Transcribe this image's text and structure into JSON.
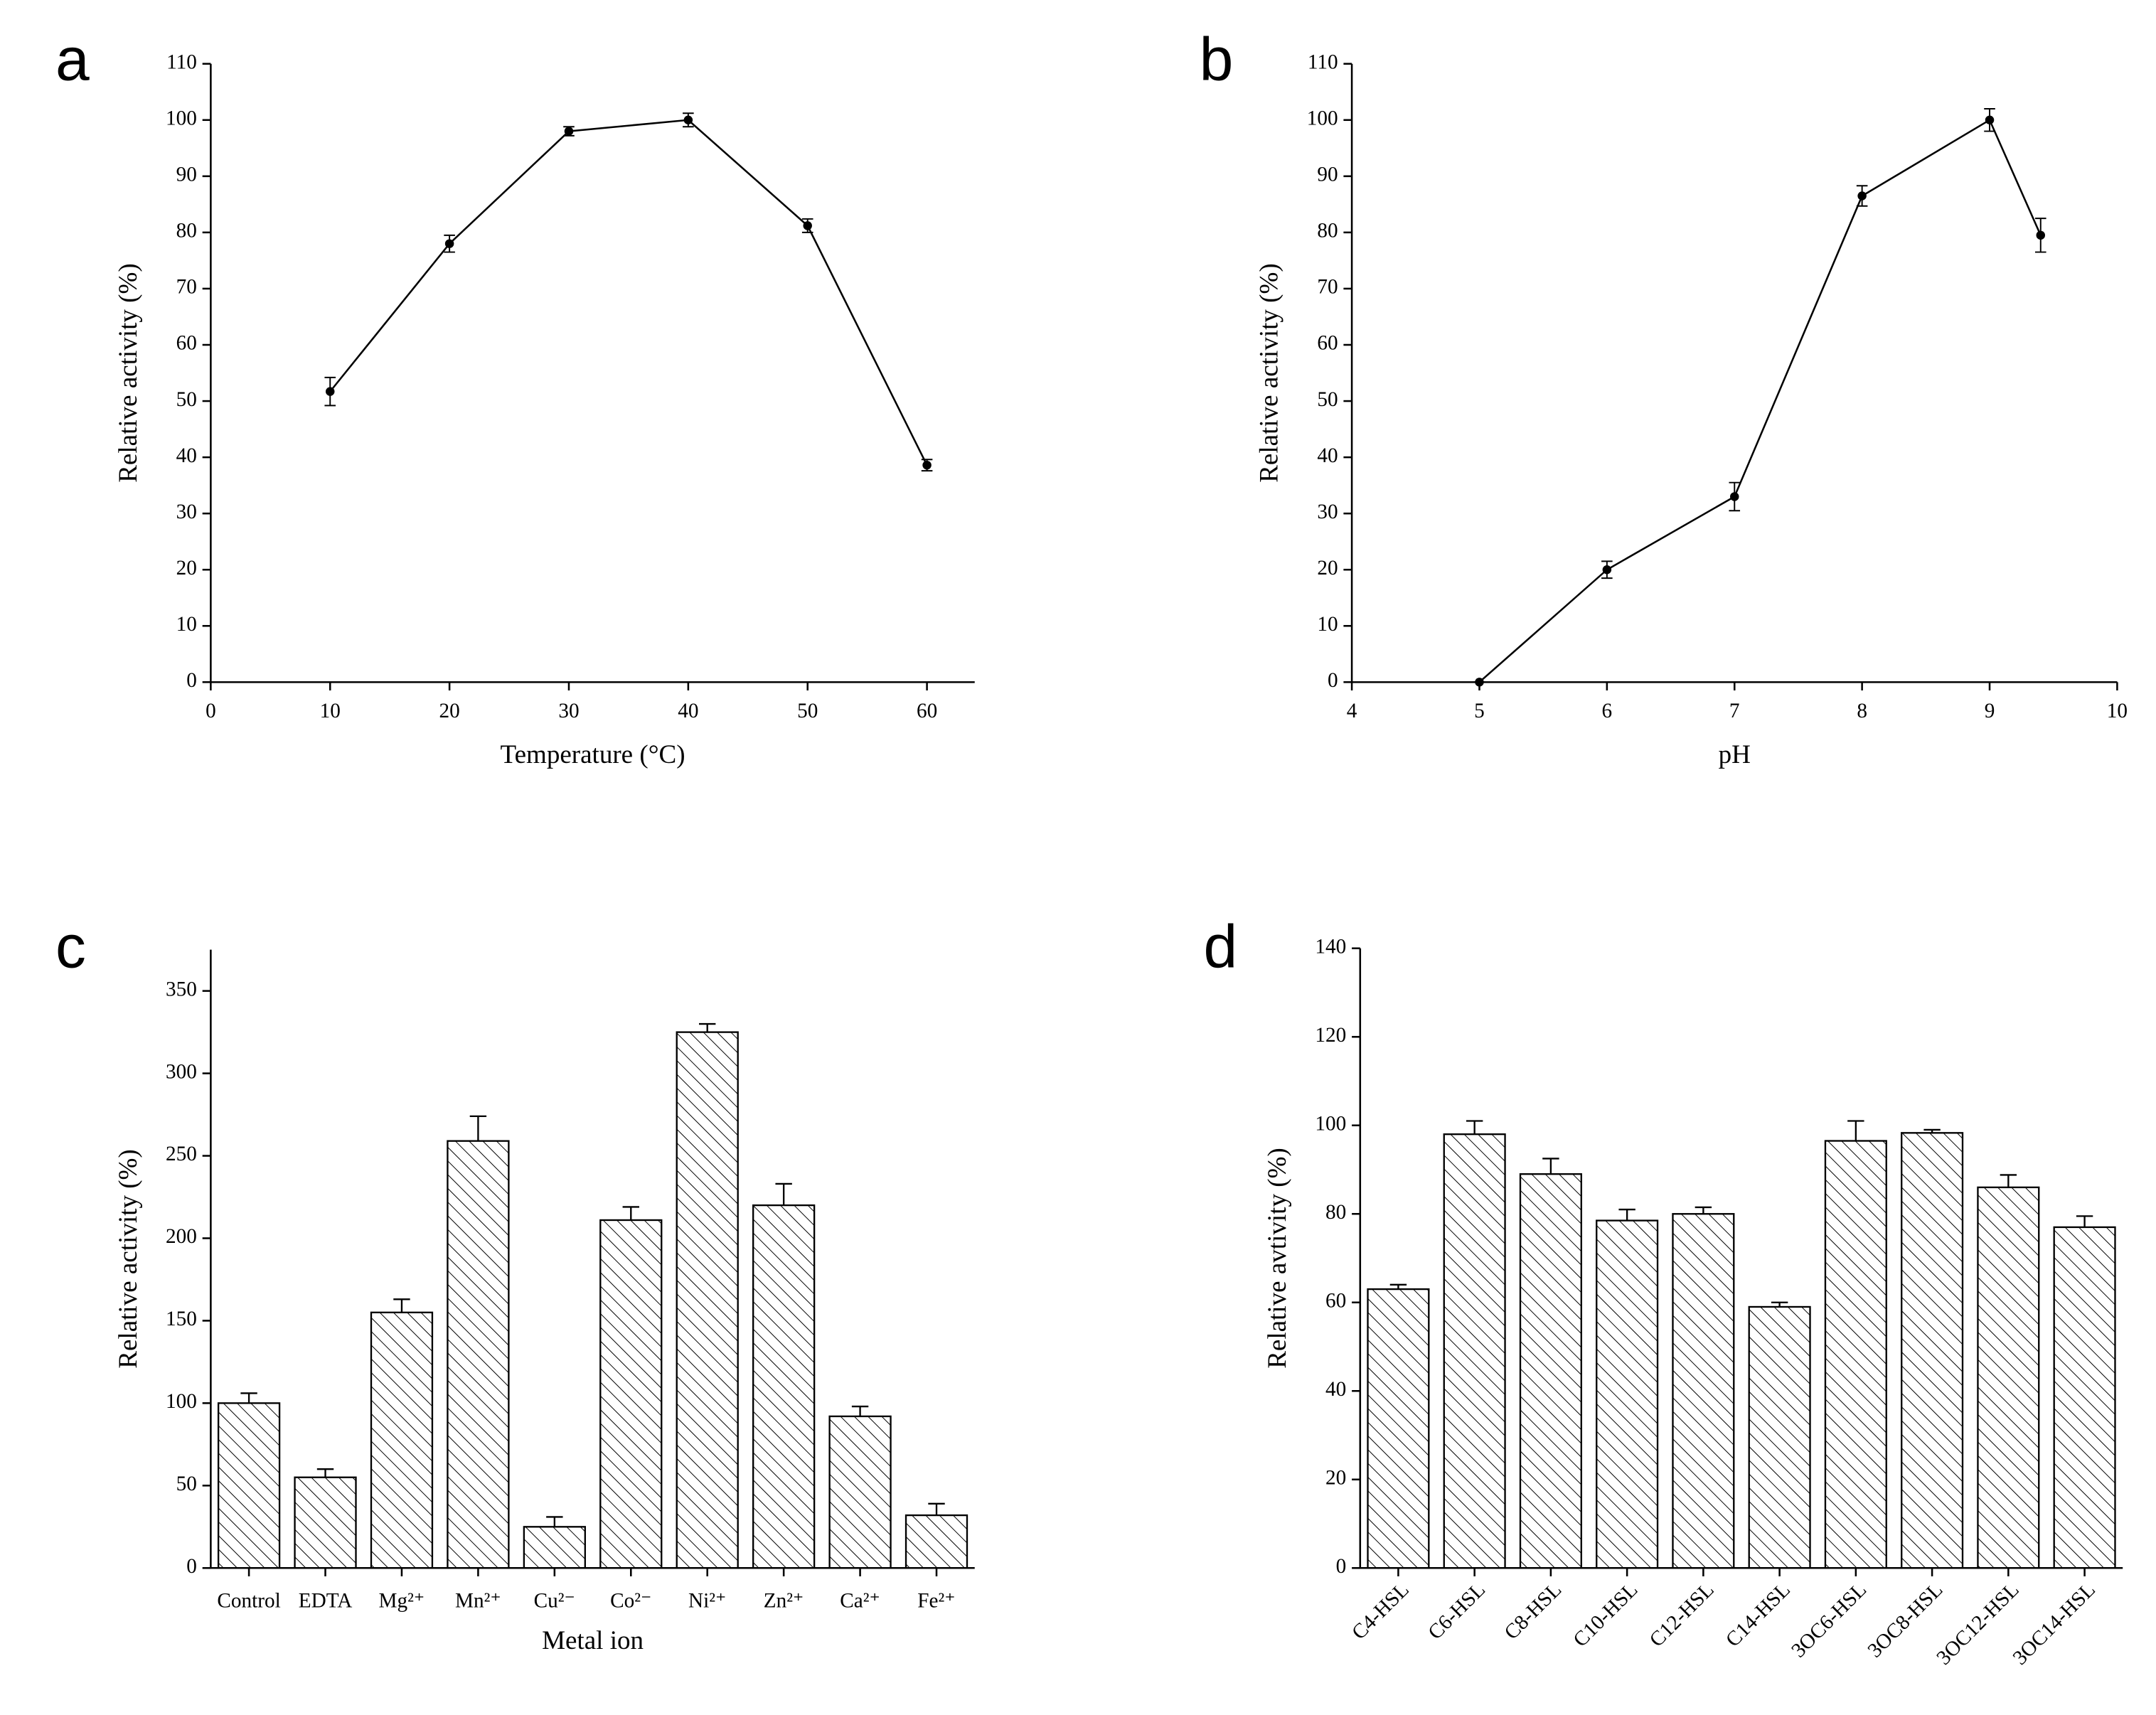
{
  "chart_data": [
    {
      "type": "line",
      "panel": "a",
      "xlabel": "Temperature (°C)",
      "ylabel": "Relative activity (%)",
      "x": [
        10,
        20,
        30,
        40,
        50,
        60
      ],
      "values": [
        51.7,
        78,
        98,
        100,
        81.2,
        38.6
      ],
      "errors": [
        2.5,
        1.5,
        0.8,
        1.2,
        1.2,
        1
      ],
      "color": "#000000",
      "xlim": [
        0,
        64
      ],
      "xticks": [
        0,
        10,
        20,
        30,
        40,
        50,
        60
      ],
      "ylim": [
        0,
        110
      ],
      "yticks": [
        0,
        10,
        20,
        30,
        40,
        50,
        60,
        70,
        80,
        90,
        100,
        110
      ]
    },
    {
      "type": "line",
      "panel": "b",
      "xlabel": "pH",
      "ylabel": "Relative activity (%)",
      "x": [
        5,
        6,
        7,
        8,
        9,
        9.4
      ],
      "values": [
        0,
        20,
        33,
        86.5,
        100,
        79.5
      ],
      "errors": [
        0,
        1.5,
        2.5,
        1.8,
        2,
        3
      ],
      "color": "#000000",
      "xlim": [
        4,
        10
      ],
      "xticks": [
        4,
        5,
        6,
        7,
        8,
        9,
        10
      ],
      "ylim": [
        0,
        110
      ],
      "yticks": [
        0,
        10,
        20,
        30,
        40,
        50,
        60,
        70,
        80,
        90,
        100,
        110
      ]
    },
    {
      "type": "bar",
      "panel": "c",
      "xlabel": "Metal ion",
      "ylabel": "Relative activity (%)",
      "categories": [
        "Control",
        "EDTA",
        "Mg²⁺",
        "Mn²⁺",
        "Cu²⁻",
        "Co²⁻",
        "Ni²⁺",
        "Zn²⁺",
        "Ca²⁺",
        "Fe²⁺"
      ],
      "values": [
        100,
        55,
        155,
        259,
        25,
        211,
        325,
        220,
        92,
        32
      ],
      "errors": [
        6,
        5,
        8,
        15,
        6,
        8,
        5,
        13,
        6,
        7
      ],
      "color": "#000000",
      "ylim": [
        0,
        375
      ],
      "yticks": [
        0,
        50,
        100,
        150,
        200,
        250,
        300,
        350
      ]
    },
    {
      "type": "bar",
      "panel": "d",
      "ylabel": "Relative avtivity (%)",
      "categories": [
        "C4-HSL",
        "C6-HSL",
        "C8-HSL",
        "C10-HSL",
        "C12-HSL",
        "C14-HSL",
        "3OC6-HSL",
        "3OC8-HSL",
        "3OC12-HSL",
        "3OC14-HSL"
      ],
      "values": [
        63,
        98,
        89,
        78.5,
        80,
        59,
        96.5,
        98.3,
        86,
        77
      ],
      "errors": [
        1,
        3,
        3.5,
        2.5,
        1.5,
        1,
        4.5,
        0.7,
        2.8,
        2.5
      ],
      "color": "#000000",
      "ylim": [
        0,
        140
      ],
      "yticks": [
        0,
        20,
        40,
        60,
        80,
        100,
        120,
        140
      ]
    }
  ]
}
